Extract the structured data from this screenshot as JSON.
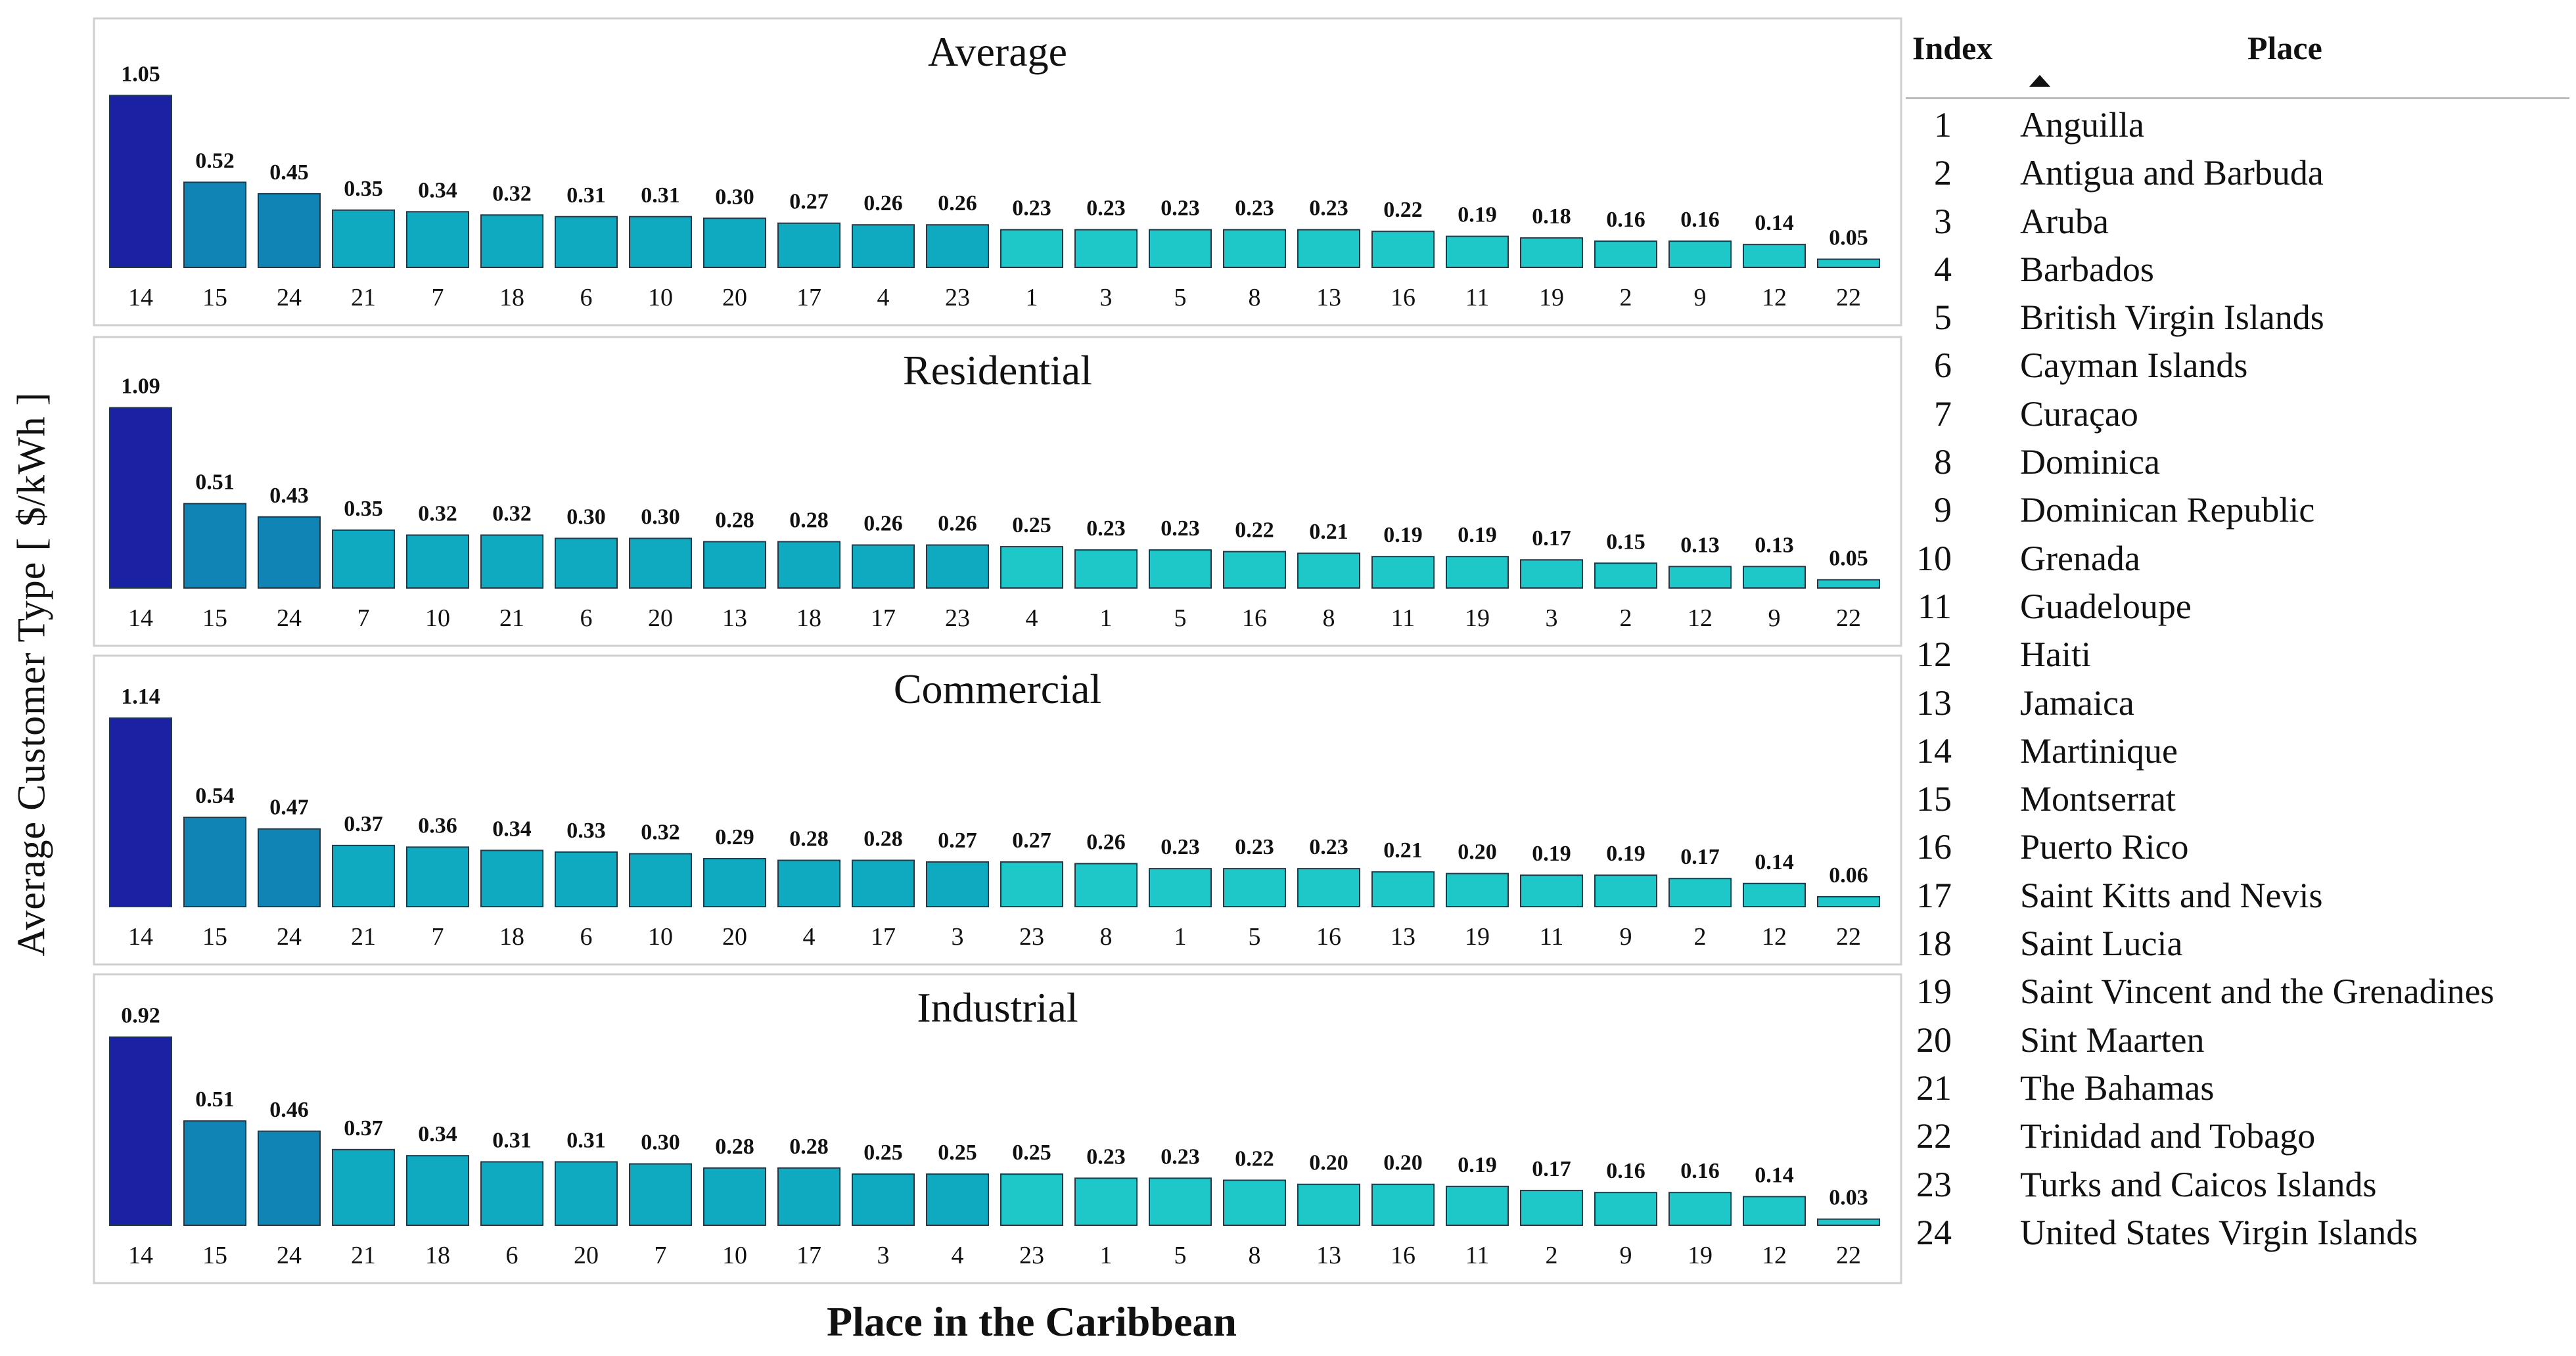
{
  "y_axis_label": "Average Customer Type [ $/kWh ]",
  "x_axis_label": "Place in the Caribbean",
  "legend_table": {
    "headers": {
      "index": "Index",
      "place": "Place"
    },
    "rows": [
      {
        "index": "1",
        "place": "Anguilla"
      },
      {
        "index": "2",
        "place": "Antigua and Barbuda"
      },
      {
        "index": "3",
        "place": "Aruba"
      },
      {
        "index": "4",
        "place": "Barbados"
      },
      {
        "index": "5",
        "place": "British Virgin Islands"
      },
      {
        "index": "6",
        "place": "Cayman Islands"
      },
      {
        "index": "7",
        "place": "Curaçao"
      },
      {
        "index": "8",
        "place": "Dominica"
      },
      {
        "index": "9",
        "place": "Dominican Republic"
      },
      {
        "index": "10",
        "place": "Grenada"
      },
      {
        "index": "11",
        "place": "Guadeloupe"
      },
      {
        "index": "12",
        "place": "Haiti"
      },
      {
        "index": "13",
        "place": "Jamaica"
      },
      {
        "index": "14",
        "place": "Martinique"
      },
      {
        "index": "15",
        "place": "Montserrat"
      },
      {
        "index": "16",
        "place": "Puerto Rico"
      },
      {
        "index": "17",
        "place": "Saint Kitts and Nevis"
      },
      {
        "index": "18",
        "place": "Saint Lucia"
      },
      {
        "index": "19",
        "place": "Saint Vincent and the Grenadines"
      },
      {
        "index": "20",
        "place": "Sint Maarten"
      },
      {
        "index": "21",
        "place": "The Bahamas"
      },
      {
        "index": "22",
        "place": "Trinidad and Tobago"
      },
      {
        "index": "23",
        "place": "Turks and Caicos Islands"
      },
      {
        "index": "24",
        "place": "United States Virgin Islands"
      }
    ]
  },
  "colors": {
    "max": "#1a21a3",
    "high": "#0f84b5",
    "mid": "#0fa9c0",
    "low": "#1ec8c8",
    "border": "#1f3a4a"
  },
  "chart_data": [
    {
      "type": "bar",
      "title": "Average",
      "categories": [
        "14",
        "15",
        "24",
        "21",
        "7",
        "18",
        "6",
        "10",
        "20",
        "17",
        "4",
        "23",
        "1",
        "3",
        "5",
        "8",
        "13",
        "16",
        "11",
        "19",
        "2",
        "9",
        "12",
        "22"
      ],
      "values": [
        1.05,
        0.52,
        0.45,
        0.35,
        0.34,
        0.32,
        0.31,
        0.31,
        0.3,
        0.27,
        0.26,
        0.26,
        0.23,
        0.23,
        0.23,
        0.23,
        0.23,
        0.22,
        0.19,
        0.18,
        0.16,
        0.16,
        0.14,
        0.05
      ],
      "labels": [
        "1.05",
        "0.52",
        "0.45",
        "0.35",
        "0.34",
        "0.32",
        "0.31",
        "0.31",
        "0.30",
        "0.27",
        "0.26",
        "0.26",
        "0.23",
        "0.23",
        "0.23",
        "0.23",
        "0.23",
        "0.22",
        "0.19",
        "0.18",
        "0.16",
        "0.16",
        "0.14",
        "0.05"
      ],
      "xlabel": "Place in the Caribbean",
      "ylabel": "Average Customer Type [ $/kWh ]",
      "ylim": [
        0,
        1.2
      ]
    },
    {
      "type": "bar",
      "title": "Residential",
      "categories": [
        "14",
        "15",
        "24",
        "7",
        "10",
        "21",
        "6",
        "20",
        "13",
        "18",
        "17",
        "23",
        "4",
        "1",
        "5",
        "16",
        "8",
        "11",
        "19",
        "3",
        "2",
        "12",
        "9",
        "22"
      ],
      "values": [
        1.09,
        0.51,
        0.43,
        0.35,
        0.32,
        0.32,
        0.3,
        0.3,
        0.28,
        0.28,
        0.26,
        0.26,
        0.25,
        0.23,
        0.23,
        0.22,
        0.21,
        0.19,
        0.19,
        0.17,
        0.15,
        0.13,
        0.13,
        0.05
      ],
      "labels": [
        "1.09",
        "0.51",
        "0.43",
        "0.35",
        "0.32",
        "0.32",
        "0.30",
        "0.30",
        "0.28",
        "0.28",
        "0.26",
        "0.26",
        "0.25",
        "0.23",
        "0.23",
        "0.22",
        "0.21",
        "0.19",
        "0.19",
        "0.17",
        "0.15",
        "0.13",
        "0.13",
        "0.05"
      ],
      "xlabel": "Place in the Caribbean",
      "ylabel": "Average Customer Type [ $/kWh ]",
      "ylim": [
        0,
        1.2
      ]
    },
    {
      "type": "bar",
      "title": "Commercial",
      "categories": [
        "14",
        "15",
        "24",
        "21",
        "7",
        "18",
        "6",
        "10",
        "20",
        "4",
        "17",
        "3",
        "23",
        "8",
        "1",
        "5",
        "16",
        "13",
        "19",
        "11",
        "9",
        "2",
        "12",
        "22"
      ],
      "values": [
        1.14,
        0.54,
        0.47,
        0.37,
        0.36,
        0.34,
        0.33,
        0.32,
        0.29,
        0.28,
        0.28,
        0.27,
        0.27,
        0.26,
        0.23,
        0.23,
        0.23,
        0.21,
        0.2,
        0.19,
        0.19,
        0.17,
        0.14,
        0.06
      ],
      "labels": [
        "1.14",
        "0.54",
        "0.47",
        "0.37",
        "0.36",
        "0.34",
        "0.33",
        "0.32",
        "0.29",
        "0.28",
        "0.28",
        "0.27",
        "0.27",
        "0.26",
        "0.23",
        "0.23",
        "0.23",
        "0.21",
        "0.20",
        "0.19",
        "0.19",
        "0.17",
        "0.14",
        "0.06"
      ],
      "xlabel": "Place in the Caribbean",
      "ylabel": "Average Customer Type [ $/kWh ]",
      "ylim": [
        0,
        1.2
      ]
    },
    {
      "type": "bar",
      "title": "Industrial",
      "categories": [
        "14",
        "15",
        "24",
        "21",
        "18",
        "6",
        "20",
        "7",
        "10",
        "17",
        "3",
        "4",
        "23",
        "1",
        "5",
        "8",
        "13",
        "16",
        "11",
        "2",
        "9",
        "19",
        "12",
        "22"
      ],
      "values": [
        0.92,
        0.51,
        0.46,
        0.37,
        0.34,
        0.31,
        0.31,
        0.3,
        0.28,
        0.28,
        0.25,
        0.25,
        0.25,
        0.23,
        0.23,
        0.22,
        0.2,
        0.2,
        0.19,
        0.17,
        0.16,
        0.16,
        0.14,
        0.03
      ],
      "labels": [
        "0.92",
        "0.51",
        "0.46",
        "0.37",
        "0.34",
        "0.31",
        "0.31",
        "0.30",
        "0.28",
        "0.28",
        "0.25",
        "0.25",
        "0.25",
        "0.23",
        "0.23",
        "0.22",
        "0.20",
        "0.20",
        "0.19",
        "0.17",
        "0.16",
        "0.16",
        "0.14",
        "0.03"
      ],
      "xlabel": "Place in the Caribbean",
      "ylabel": "Average Customer Type [ $/kWh ]",
      "ylim": [
        0,
        0.97
      ]
    }
  ]
}
